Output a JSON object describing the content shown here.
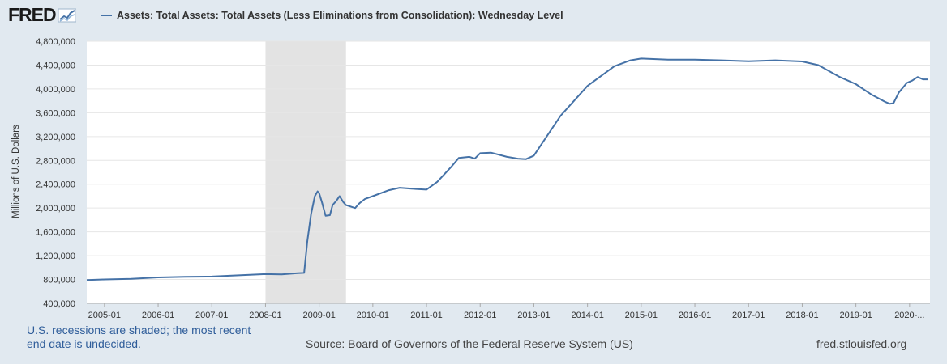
{
  "header": {
    "logo_text": "FRED",
    "series_title": "Assets: Total Assets: Total Assets (Less Eliminations from Consolidation): Wednesday Level",
    "series_color": "#4572a7"
  },
  "footer": {
    "note": "U.S. recessions are shaded; the most recent end date is undecided.",
    "source": "Source: Board of Governors of the Federal Reserve System (US)",
    "url": "fred.stlouisfed.org"
  },
  "chart_data": {
    "type": "line",
    "title": "Assets: Total Assets: Total Assets (Less Eliminations from Consolidation): Wednesday Level",
    "ylabel": "Millions of U.S. Dollars",
    "xlabel": "",
    "ylim": [
      400000,
      4800000
    ],
    "yticks": [
      400000,
      800000,
      1200000,
      1600000,
      2000000,
      2400000,
      2800000,
      3200000,
      3600000,
      4000000,
      4400000,
      4800000
    ],
    "ytick_labels": [
      "400,000",
      "800,000",
      "1,200,000",
      "1,600,000",
      "2,000,000",
      "2,400,000",
      "2,800,000",
      "3,200,000",
      "3,600,000",
      "4,000,000",
      "4,400,000",
      "4,800,000"
    ],
    "xlim": [
      2004.67,
      2020.38
    ],
    "xticks": [
      2005,
      2006,
      2007,
      2008,
      2009,
      2010,
      2011,
      2012,
      2013,
      2014,
      2015,
      2016,
      2017,
      2018,
      2019,
      2020
    ],
    "xtick_labels": [
      "2005-01",
      "2006-01",
      "2007-01",
      "2008-01",
      "2009-01",
      "2010-01",
      "2011-01",
      "2012-01",
      "2013-01",
      "2014-01",
      "2015-01",
      "2016-01",
      "2017-01",
      "2018-01",
      "2019-01",
      "2020-..."
    ],
    "recessions": [
      [
        2008.0,
        2009.5
      ]
    ],
    "grid": true,
    "series": [
      {
        "name": "Assets: Total Assets: Total Assets (Less Eliminations from Consolidation): Wednesday Level",
        "color": "#4572a7",
        "x": [
          2004.67,
          2005.0,
          2005.5,
          2006.0,
          2006.5,
          2007.0,
          2007.5,
          2008.0,
          2008.3,
          2008.6,
          2008.72,
          2008.78,
          2008.85,
          2008.92,
          2008.97,
          2009.0,
          2009.05,
          2009.12,
          2009.2,
          2009.25,
          2009.32,
          2009.38,
          2009.45,
          2009.5,
          2009.6,
          2009.67,
          2009.75,
          2009.85,
          2010.0,
          2010.3,
          2010.5,
          2010.8,
          2011.0,
          2011.2,
          2011.45,
          2011.6,
          2011.8,
          2011.9,
          2012.0,
          2012.2,
          2012.5,
          2012.7,
          2012.85,
          2013.0,
          2013.5,
          2014.0,
          2014.5,
          2014.8,
          2015.0,
          2015.5,
          2016.0,
          2016.5,
          2017.0,
          2017.5,
          2018.0,
          2018.3,
          2018.7,
          2019.0,
          2019.3,
          2019.55,
          2019.63,
          2019.7,
          2019.8,
          2019.95,
          2020.05,
          2020.15,
          2020.25,
          2020.35
        ],
        "values": [
          790000,
          800000,
          810000,
          835000,
          845000,
          850000,
          870000,
          890000,
          885000,
          905000,
          910000,
          1450000,
          1900000,
          2200000,
          2280000,
          2250000,
          2100000,
          1870000,
          1880000,
          2050000,
          2120000,
          2200000,
          2100000,
          2050000,
          2020000,
          2000000,
          2080000,
          2150000,
          2200000,
          2300000,
          2340000,
          2320000,
          2310000,
          2440000,
          2680000,
          2840000,
          2860000,
          2830000,
          2920000,
          2930000,
          2860000,
          2830000,
          2820000,
          2880000,
          3550000,
          4050000,
          4380000,
          4480000,
          4510000,
          4490000,
          4490000,
          4480000,
          4465000,
          4480000,
          4460000,
          4400000,
          4200000,
          4080000,
          3900000,
          3780000,
          3750000,
          3760000,
          3940000,
          4100000,
          4140000,
          4200000,
          4160000,
          4160000
        ]
      }
    ]
  }
}
